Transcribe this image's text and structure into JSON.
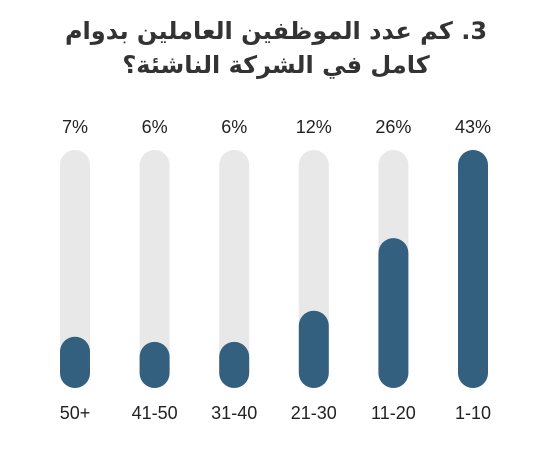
{
  "chart_data": {
    "type": "bar",
    "title": "3. كم عدد الموظفين العاملين بدوام كامل في الشركة الناشئة؟",
    "categories": [
      "50+",
      "41-50",
      "31-40",
      "21-30",
      "11-20",
      "1-10"
    ],
    "values": [
      7,
      6,
      6,
      12,
      26,
      43
    ],
    "value_labels": [
      "7%",
      "6%",
      "6%",
      "12%",
      "26%",
      "43%"
    ],
    "color": "#34607f",
    "track_color": "#e8e8e8"
  }
}
